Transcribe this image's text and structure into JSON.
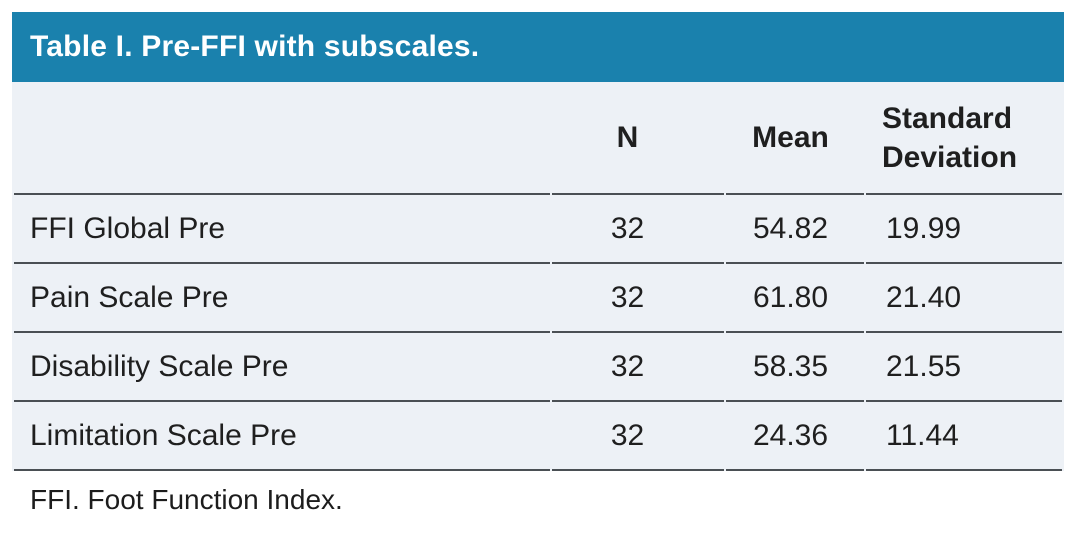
{
  "title": "Table I. Pre-FFI with subscales.",
  "columns": {
    "blank": "",
    "n": "N",
    "mean": "Mean",
    "sd": "Standard Deviation"
  },
  "rows": [
    {
      "label": "FFI Global Pre",
      "n": "32",
      "mean": "54.82",
      "sd": "19.99"
    },
    {
      "label": "Pain Scale Pre",
      "n": "32",
      "mean": "61.80",
      "sd": "21.40"
    },
    {
      "label": "Disability Scale Pre",
      "n": "32",
      "mean": "58.35",
      "sd": "21.55"
    },
    {
      "label": "Limitation Scale Pre",
      "n": "32",
      "mean": "24.36",
      "sd": "11.44"
    }
  ],
  "footnote": "FFI. Foot Function Index.",
  "colors": {
    "header_bar": "#1a81ad",
    "row_background": "#edf1f6",
    "rule_line": "#4a4f54",
    "title_text": "#ffffff",
    "body_text": "#1f1f1f"
  },
  "chart_data": {
    "type": "table",
    "title": "Table I. Pre-FFI with subscales.",
    "columns": [
      "",
      "N",
      "Mean",
      "Standard Deviation"
    ],
    "rows": [
      [
        "FFI Global Pre",
        32,
        54.82,
        19.99
      ],
      [
        "Pain Scale Pre",
        32,
        61.8,
        21.4
      ],
      [
        "Disability Scale Pre",
        32,
        58.35,
        21.55
      ],
      [
        "Limitation Scale Pre",
        32,
        24.36,
        11.44
      ]
    ],
    "footnote": "FFI. Foot Function Index."
  }
}
